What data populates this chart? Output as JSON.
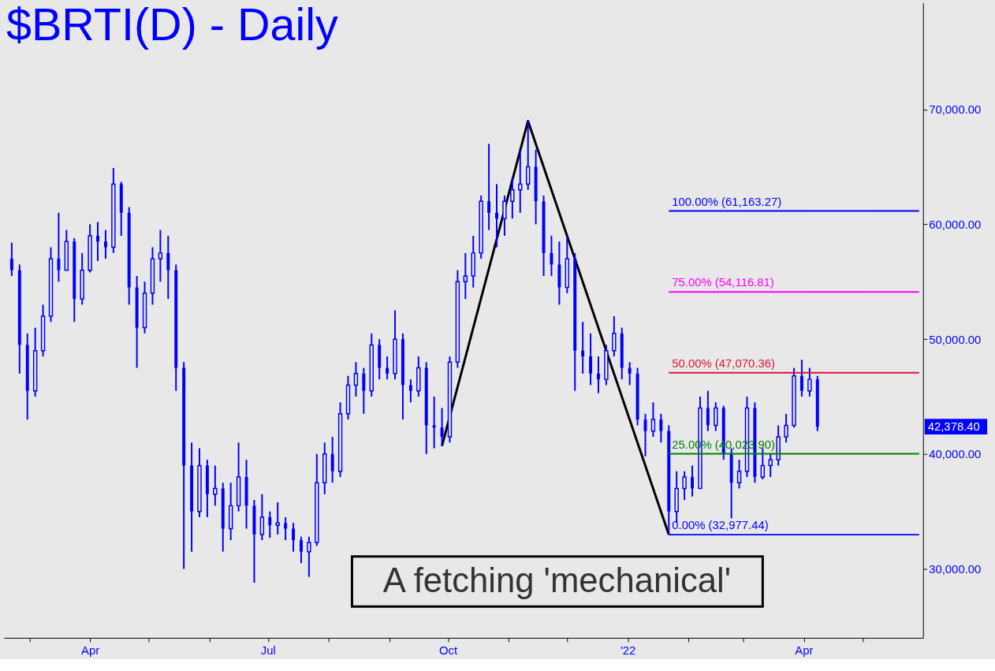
{
  "chart_data": {
    "type": "candlestick",
    "title": "$BRTI(D) - Daily",
    "color": "#0000ff",
    "x": [
      "2021-02-20",
      "2021-02-24",
      "2021-02-28",
      "2021-03-04",
      "2021-03-08",
      "2021-03-12",
      "2021-03-16",
      "2021-03-20",
      "2021-03-24",
      "2021-03-28",
      "2021-04-01",
      "2021-04-05",
      "2021-04-09",
      "2021-04-13",
      "2021-04-17",
      "2021-04-21",
      "2021-04-25",
      "2021-04-29",
      "2021-05-03",
      "2021-05-07",
      "2021-05-11",
      "2021-05-15",
      "2021-05-19",
      "2021-05-23",
      "2021-05-27",
      "2021-05-31",
      "2021-06-04",
      "2021-06-08",
      "2021-06-12",
      "2021-06-16",
      "2021-06-20",
      "2021-06-24",
      "2021-06-28",
      "2021-07-02",
      "2021-07-06",
      "2021-07-10",
      "2021-07-14",
      "2021-07-18",
      "2021-07-22",
      "2021-07-26",
      "2021-07-30",
      "2021-08-03",
      "2021-08-07",
      "2021-08-11",
      "2021-08-15",
      "2021-08-19",
      "2021-08-23",
      "2021-08-27",
      "2021-08-31",
      "2021-09-04",
      "2021-09-08",
      "2021-09-12",
      "2021-09-16",
      "2021-09-20",
      "2021-09-24",
      "2021-09-28",
      "2021-10-02",
      "2021-10-06",
      "2021-10-10",
      "2021-10-14",
      "2021-10-18",
      "2021-10-22",
      "2021-10-26",
      "2021-10-30",
      "2021-11-03",
      "2021-11-07",
      "2021-11-11",
      "2021-11-15",
      "2021-11-19",
      "2021-11-23",
      "2021-11-27",
      "2021-12-01",
      "2021-12-05",
      "2021-12-09",
      "2021-12-13",
      "2021-12-17",
      "2021-12-21",
      "2021-12-25",
      "2021-12-29",
      "2022-01-02",
      "2022-01-06",
      "2022-01-10",
      "2022-01-14",
      "2022-01-18",
      "2022-01-22",
      "2022-01-26",
      "2022-01-30",
      "2022-02-03",
      "2022-02-07",
      "2022-02-11",
      "2022-02-15",
      "2022-02-19",
      "2022-02-23",
      "2022-02-27",
      "2022-03-03",
      "2022-03-07",
      "2022-03-11",
      "2022-03-15",
      "2022-03-19",
      "2022-03-23",
      "2022-03-27",
      "2022-03-31",
      "2022-04-04",
      "2022-04-08"
    ],
    "ohlc": [
      [
        57000,
        58400,
        55500,
        56000
      ],
      [
        56000,
        56500,
        47000,
        49500
      ],
      [
        49500,
        50500,
        43000,
        45500
      ],
      [
        45500,
        51000,
        45000,
        49000
      ],
      [
        49000,
        53000,
        48500,
        52000
      ],
      [
        52000,
        58000,
        51500,
        57000
      ],
      [
        57000,
        61000,
        55000,
        56000
      ],
      [
        56000,
        59500,
        56000,
        58500
      ],
      [
        58500,
        58800,
        51500,
        53500
      ],
      [
        53500,
        57500,
        53000,
        56000
      ],
      [
        56000,
        60000,
        55800,
        59000
      ],
      [
        59000,
        60200,
        56800,
        58500
      ],
      [
        58500,
        59500,
        57000,
        58000
      ],
      [
        58000,
        64900,
        57500,
        63500
      ],
      [
        63500,
        63700,
        59000,
        61000
      ],
      [
        61000,
        61500,
        53000,
        54500
      ],
      [
        54500,
        55500,
        47500,
        51000
      ],
      [
        51000,
        55000,
        50500,
        54000
      ],
      [
        54000,
        58000,
        53000,
        57000
      ],
      [
        57000,
        59500,
        55000,
        57500
      ],
      [
        57500,
        59000,
        53500,
        56000
      ],
      [
        56000,
        56500,
        45500,
        47500
      ],
      [
        47500,
        48000,
        30000,
        39000
      ],
      [
        39000,
        41000,
        31500,
        35000
      ],
      [
        35000,
        40500,
        34500,
        39000
      ],
      [
        39000,
        39500,
        34500,
        36500
      ],
      [
        36500,
        39000,
        35500,
        37000
      ],
      [
        37000,
        37500,
        31500,
        33500
      ],
      [
        33500,
        37500,
        32500,
        35500
      ],
      [
        35500,
        41000,
        35000,
        38000
      ],
      [
        38000,
        39500,
        33500,
        35500
      ],
      [
        35500,
        36000,
        28800,
        33000
      ],
      [
        33000,
        36500,
        32500,
        34500
      ],
      [
        34500,
        35000,
        32700,
        33800
      ],
      [
        33800,
        35800,
        33000,
        34000
      ],
      [
        34000,
        34500,
        32500,
        33500
      ],
      [
        33500,
        34000,
        31500,
        32500
      ],
      [
        32500,
        32800,
        30500,
        31500
      ],
      [
        31500,
        32800,
        29300,
        32300
      ],
      [
        32300,
        40000,
        32000,
        37500
      ],
      [
        37500,
        41000,
        36500,
        40000
      ],
      [
        40000,
        41500,
        37500,
        38500
      ],
      [
        38500,
        44500,
        38000,
        43500
      ],
      [
        43500,
        46800,
        43000,
        46000
      ],
      [
        46000,
        48000,
        45000,
        47000
      ],
      [
        47000,
        47500,
        43500,
        45500
      ],
      [
        45500,
        50500,
        45000,
        49500
      ],
      [
        49500,
        50000,
        46500,
        47500
      ],
      [
        47500,
        48500,
        46500,
        47000
      ],
      [
        47000,
        52500,
        46500,
        50000
      ],
      [
        50000,
        50500,
        43000,
        46000
      ],
      [
        46000,
        46500,
        44500,
        45500
      ],
      [
        45500,
        48500,
        45000,
        47500
      ],
      [
        47500,
        48000,
        40000,
        42500
      ],
      [
        42500,
        45000,
        40500,
        42300
      ],
      [
        42300,
        44000,
        40700,
        41500
      ],
      [
        41500,
        48500,
        41000,
        48000
      ],
      [
        48000,
        56000,
        47500,
        55000
      ],
      [
        55000,
        57500,
        53500,
        55500
      ],
      [
        55500,
        59000,
        54500,
        57500
      ],
      [
        57500,
        62500,
        57000,
        62000
      ],
      [
        62000,
        67000,
        59500,
        61000
      ],
      [
        61000,
        63500,
        58000,
        60500
      ],
      [
        60500,
        62500,
        59000,
        62000
      ],
      [
        62000,
        64000,
        60500,
        63000
      ],
      [
        63000,
        66500,
        61000,
        63500
      ],
      [
        63500,
        68990,
        63000,
        65000
      ],
      [
        65000,
        66500,
        60000,
        62000
      ],
      [
        62000,
        62500,
        55500,
        57500
      ],
      [
        57500,
        59000,
        55500,
        56500
      ],
      [
        56500,
        58500,
        53000,
        54500
      ],
      [
        54500,
        59000,
        54000,
        57000
      ],
      [
        57000,
        57500,
        45500,
        49000
      ],
      [
        49000,
        51500,
        47000,
        48500
      ],
      [
        48500,
        50500,
        46000,
        47000
      ],
      [
        47000,
        48500,
        45300,
        46500
      ],
      [
        46500,
        49500,
        46000,
        49000
      ],
      [
        49000,
        52000,
        48500,
        50500
      ],
      [
        50500,
        51000,
        46500,
        47500
      ],
      [
        47500,
        48000,
        46000,
        47000
      ],
      [
        47000,
        47500,
        42500,
        43000
      ],
      [
        43000,
        43500,
        39800,
        42000
      ],
      [
        42000,
        44500,
        41500,
        43000
      ],
      [
        43000,
        43500,
        41000,
        42000
      ],
      [
        42000,
        42500,
        32977.44,
        35000
      ],
      [
        35000,
        38500,
        34000,
        37000
      ],
      [
        37000,
        38500,
        36000,
        38000
      ],
      [
        38000,
        39000,
        36300,
        37000
      ],
      [
        37000,
        45000,
        37000,
        44000
      ],
      [
        44000,
        45500,
        42000,
        42500
      ],
      [
        42500,
        44500,
        42000,
        44000
      ],
      [
        44000,
        44200,
        39500,
        40000
      ],
      [
        40000,
        40500,
        34400,
        37500
      ],
      [
        37500,
        39500,
        37000,
        38500
      ],
      [
        38500,
        45000,
        38000,
        44000
      ],
      [
        44000,
        44500,
        37500,
        38000
      ],
      [
        38000,
        40500,
        37800,
        39000
      ],
      [
        39000,
        40000,
        38000,
        39500
      ],
      [
        39500,
        42500,
        39000,
        41500
      ],
      [
        41500,
        43500,
        41000,
        42500
      ],
      [
        42500,
        47500,
        42300,
        46800
      ],
      [
        46800,
        48200,
        45000,
        45500
      ],
      [
        45500,
        47500,
        45000,
        46500
      ],
      [
        46500,
        46800,
        42000,
        42378.4
      ]
    ],
    "series": [
      {
        "type": "line",
        "color": "#000000",
        "x": [
          "2021-09-28",
          "2021-11-11",
          "2022-01-22"
        ],
        "values": [
          40700,
          68990,
          32980
        ]
      }
    ],
    "ref_lines": [
      {
        "axis": "y",
        "value": 61163.27,
        "label": "100.00% (61,163.27)",
        "color": "#0000ff"
      },
      {
        "axis": "y",
        "value": 54116.81,
        "label": "75.00% (54,116.81)",
        "color": "#ff00ff"
      },
      {
        "axis": "y",
        "value": 47070.36,
        "label": "50.00% (47,070.36)",
        "color": "#dc143c"
      },
      {
        "axis": "y",
        "value": 40023.9,
        "label": "25.00% (40,023.90)",
        "color": "#008000"
      },
      {
        "axis": "y",
        "value": 32977.44,
        "label": "0.00% (32,977.44)",
        "color": "#0000ff"
      }
    ],
    "annotations": [
      "A fetching 'mechanical'",
      "42,378.40"
    ],
    "xlim": [
      "2021-02-18",
      "2022-05-30"
    ],
    "xticks": [
      {
        "value": "2021-03-01",
        "label": null
      },
      {
        "value": "2021-04-01",
        "label": "Apr"
      },
      {
        "value": "2021-05-01",
        "label": null
      },
      {
        "value": "2021-06-01",
        "label": null
      },
      {
        "value": "2021-07-01",
        "label": "Jul"
      },
      {
        "value": "2021-08-01",
        "label": null
      },
      {
        "value": "2021-09-01",
        "label": null
      },
      {
        "value": "2021-10-01",
        "label": "Oct"
      },
      {
        "value": "2021-11-01",
        "label": null
      },
      {
        "value": "2021-12-01",
        "label": null
      },
      {
        "value": "2022-01-01",
        "label": "'22"
      },
      {
        "value": "2022-02-01",
        "label": null
      },
      {
        "value": "2022-03-01",
        "label": null
      },
      {
        "value": "2022-04-01",
        "label": "Apr"
      },
      {
        "value": "2022-05-01",
        "label": null
      }
    ],
    "ylim": [
      24000,
      79300
    ],
    "yticks": [
      {
        "value": 30000,
        "label": "30,000.00"
      },
      {
        "value": 40000,
        "label": "40,000.00"
      },
      {
        "value": 50000,
        "label": "50,000.00"
      },
      {
        "value": 60000,
        "label": "60,000.00"
      },
      {
        "value": 70000,
        "label": "70,000.00"
      }
    ],
    "grid": false
  }
}
